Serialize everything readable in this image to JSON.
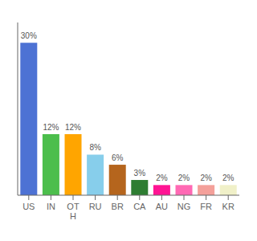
{
  "chart_data": {
    "type": "bar",
    "categories": [
      "US",
      "IN",
      "OT\nH",
      "RU",
      "BR",
      "CA",
      "AU",
      "NG",
      "FR",
      "KR"
    ],
    "values": [
      30,
      12,
      12,
      8,
      6,
      3,
      2,
      2,
      2,
      2
    ],
    "value_labels": [
      "30%",
      "12%",
      "12%",
      "8%",
      "6%",
      "3%",
      "2%",
      "2%",
      "2%",
      "2%"
    ],
    "colors": [
      "#4d72d4",
      "#4cbe4c",
      "#ffa500",
      "#87ceeb",
      "#b5651d",
      "#2e7d32",
      "#ff1493",
      "#ff69b4",
      "#f4a09a",
      "#f0f0c8"
    ],
    "ylim": [
      0,
      34
    ],
    "data_labels": true,
    "tick_labels": "x"
  }
}
